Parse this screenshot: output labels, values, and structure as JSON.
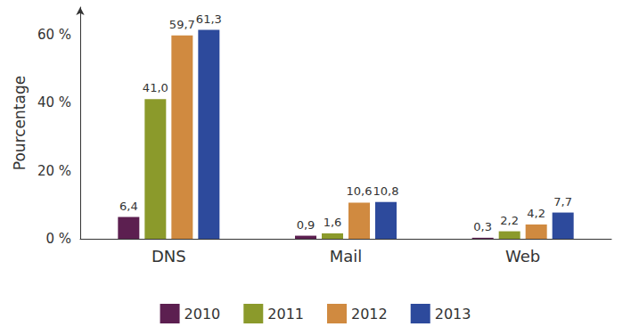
{
  "chart_data": {
    "type": "bar",
    "categories": [
      "DNS",
      "Mail",
      "Web"
    ],
    "series": [
      {
        "name": "2010",
        "color": "#5c1f50",
        "values": [
          6.4,
          0.9,
          0.3
        ],
        "value_labels": [
          "6,4",
          "0,9",
          "0,3"
        ]
      },
      {
        "name": "2011",
        "color": "#8b9a2b",
        "values": [
          41.0,
          1.6,
          2.2
        ],
        "value_labels": [
          "41,0",
          "1,6",
          "2,2"
        ]
      },
      {
        "name": "2012",
        "color": "#d08a40",
        "values": [
          59.7,
          10.6,
          4.2
        ],
        "value_labels": [
          "59,7",
          "10,6",
          "4,2"
        ]
      },
      {
        "name": "2013",
        "color": "#2d4a9c",
        "values": [
          61.3,
          10.8,
          7.7
        ],
        "value_labels": [
          "61,3",
          "10,8",
          "7,7"
        ]
      }
    ],
    "ylabel": "Pourcentage",
    "ylim": [
      0,
      68
    ],
    "yticks": [
      {
        "value": 0,
        "label": "0 %"
      },
      {
        "value": 20,
        "label": "20 %"
      },
      {
        "value": 40,
        "label": "40 %"
      },
      {
        "value": 60,
        "label": "60 %"
      }
    ],
    "grid": false,
    "legend": "bottom",
    "data_labels": true
  }
}
